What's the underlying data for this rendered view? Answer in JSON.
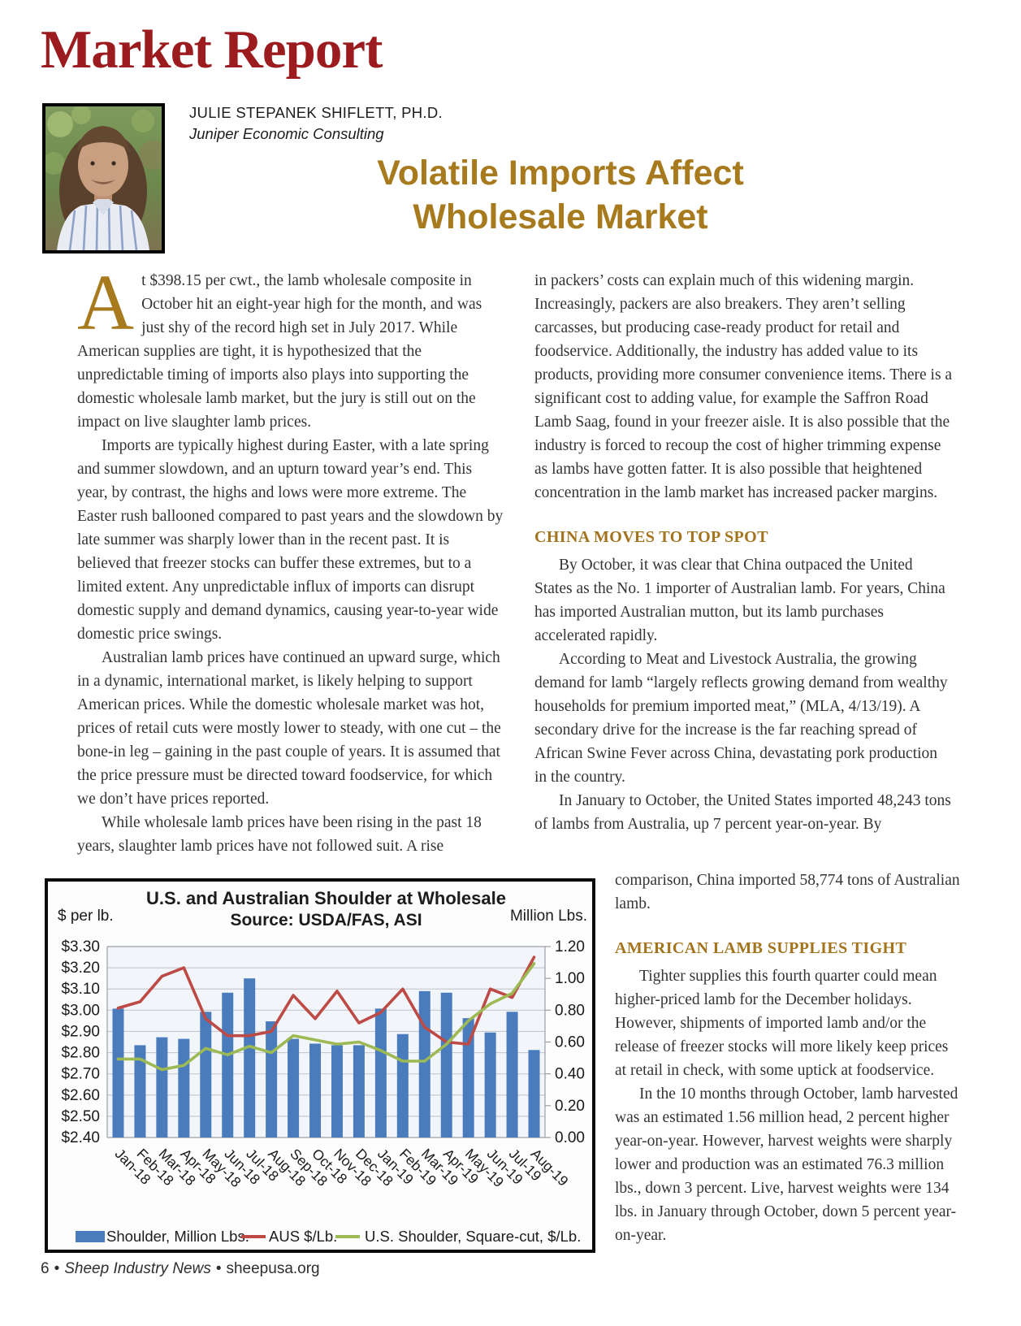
{
  "masthead": {
    "title": "Market Report"
  },
  "byline": {
    "name": "JULIE STEPANEK SHIFLETT, PH.D.",
    "organization": "Juniper Economic Consulting"
  },
  "article": {
    "headline_line1": "Volatile Imports Affect",
    "headline_line2": "Wholesale Market",
    "drop_cap": "A",
    "col1_paragraphs": [
      "t $398.15 per cwt., the lamb wholesale composite in October hit an eight-year high for the month, and was just shy of the record high set in July 2017. While American supplies are tight, it is hypothesized that the unpredictable timing of imports also plays into supporting the domestic wholesale lamb market, but the jury is still out on the impact on live slaughter lamb prices.",
      "Imports are typically highest during Easter, with a late spring and summer slowdown, and an upturn toward year’s end. This year, by contrast, the highs and lows were more extreme. The Easter rush ballooned compared to past years and the slowdown by late summer was sharply lower than in the recent past. It is believed that freezer stocks can buffer these extremes, but to a limited extent. Any unpredictable influx of imports can disrupt domestic supply and demand dynamics, causing year-to-year wide domestic price swings.",
      "Australian lamb prices have continued an upward surge, which in a dynamic, international market, is likely helping to support American prices. While the domestic wholesale market was hot, prices of retail cuts were mostly lower to steady, with one cut – the bone-in leg – gaining in the past couple of years. It is assumed that the price pressure must be directed toward foodservice, for which we don’t have prices reported.",
      "While wholesale lamb prices have been rising in the past 18 years, slaughter lamb prices have not followed suit. A rise"
    ],
    "col2_continuation": "in packers’ costs can explain much of this widening margin. Increasingly, packers are also breakers. They aren’t selling carcasses, but producing case-ready product for retail and foodservice. Additionally, the industry has added value to its products, providing more consumer convenience items. There is a significant cost to adding value, for example the Saffron Road Lamb Saag, found in your freezer aisle. It is also possible that the industry is forced to recoup the cost of higher trimming expense as lambs have gotten fatter. It is also possible that heightened concentration in the lamb market has increased packer margins.",
    "section1_heading": "CHINA MOVES TO TOP SPOT",
    "section1_paragraphs": [
      "By October, it was clear that China outpaced the United States as the No. 1 importer of Australian lamb. For years, China has imported Australian mutton, but its lamb purchases accelerated rapidly.",
      "According to Meat and Livestock Australia, the growing demand for lamb “largely reflects growing demand from wealthy households for premium imported meat,” (MLA, 4/13/19). A secondary drive for the increase is the far reaching spread of African Swine Fever across China, devastating pork production in the country.",
      "In January to October, the United States imported 48,243 tons of lambs from Australia, up 7 percent year-on-year. By"
    ],
    "section1_continued": "comparison, China imported 58,774 tons of Australian lamb.",
    "section2_heading": "AMERICAN LAMB SUPPLIES TIGHT",
    "section2_paragraphs": [
      "Tighter supplies this fourth quarter could mean higher-priced lamb for the December holidays. However, shipments of imported lamb and/or the release of freezer stocks will more likely keep prices at retail in check, with some uptick at foodservice.",
      "In the 10 months through October, lamb harvested was an estimated 1.56 million head, 2 percent higher year-on-year. However, harvest weights were sharply lower and production was an estimated 76.3 million lbs., down 3 percent. Live, harvest weights were 134 lbs. in January through October, down 5 percent year-on-year."
    ]
  },
  "chart_data": {
    "type": "bar",
    "combo": true,
    "title": "U.S. and Australian Shoulder at Wholesale",
    "subtitle": "Source: USDA/FAS, ASI",
    "left_axis_label": "$ per lb.",
    "right_axis_label": "Million Lbs.",
    "categories": [
      "Jan-18",
      "Feb-18",
      "Mar-18",
      "Apr-18",
      "May-18",
      "Jun-18",
      "Jul-18",
      "Aug-18",
      "Sep-18",
      "Oct-18",
      "Nov-18",
      "Dec-18",
      "Jan-19",
      "Feb-19",
      "Mar-19",
      "Apr-19",
      "May-19",
      "Jun-19",
      "Jul-19",
      "Aug-19"
    ],
    "series": [
      {
        "name": "Shoulder, Million Lbs.",
        "kind": "bar",
        "axis": "right",
        "color": "#4a7cbd",
        "values": [
          0.81,
          0.58,
          0.63,
          0.62,
          0.79,
          0.91,
          1.0,
          0.73,
          0.62,
          0.59,
          0.58,
          0.58,
          0.81,
          0.65,
          0.92,
          0.91,
          0.75,
          0.66,
          0.79,
          0.55
        ]
      },
      {
        "name": "AUS $/Lb.",
        "kind": "line",
        "axis": "left",
        "color": "#bd4a45",
        "values": [
          3.01,
          3.04,
          3.16,
          3.2,
          2.96,
          2.88,
          2.88,
          2.9,
          3.07,
          2.96,
          3.09,
          2.94,
          2.99,
          3.1,
          2.92,
          2.85,
          2.84,
          3.1,
          3.06,
          3.25
        ]
      },
      {
        "name": "U.S. Shoulder, Square-cut, $/Lb.",
        "kind": "line",
        "axis": "left",
        "color": "#9cb953",
        "values": [
          2.77,
          2.77,
          2.72,
          2.74,
          2.82,
          2.79,
          2.83,
          2.8,
          2.88,
          2.86,
          2.84,
          2.85,
          2.81,
          2.76,
          2.76,
          2.84,
          2.95,
          3.03,
          3.08,
          3.22
        ]
      }
    ],
    "left_axis": {
      "min": 2.4,
      "max": 3.3,
      "step": 0.1,
      "tick_labels": [
        "$3.30",
        "$3.20",
        "$3.10",
        "$3.00",
        "$2.90",
        "$2.80",
        "$2.70",
        "$2.60",
        "$2.50",
        "$2.40"
      ]
    },
    "right_axis": {
      "min": 0.0,
      "max": 1.2,
      "step": 0.2,
      "tick_labels": [
        "1.20",
        "1.00",
        "0.80",
        "0.60",
        "0.40",
        "0.20",
        "0.00"
      ]
    },
    "grid": true,
    "legend_position": "bottom"
  },
  "footer": {
    "page_number": "6",
    "separator": "•",
    "publication": "Sheep Industry News",
    "website": "sheepusa.org"
  }
}
